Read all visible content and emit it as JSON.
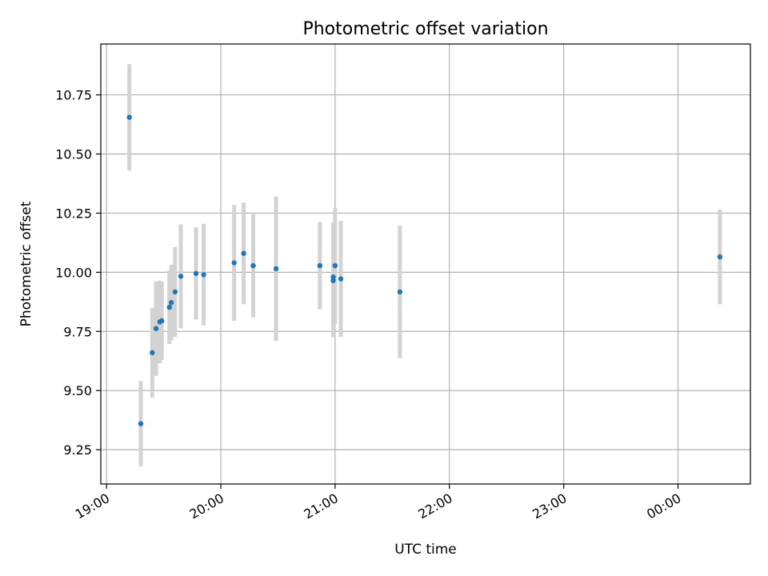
{
  "chart_data": {
    "type": "scatter",
    "title": "Photometric offset variation",
    "xlabel": "UTC time",
    "ylabel": "Photometric offset",
    "grid": true,
    "x_axis_type": "time",
    "xlim": [
      "18:57",
      "00:38"
    ],
    "ylim": [
      9.105,
      10.965
    ],
    "x_ticks": [
      {
        "time": "19:00",
        "label": "19:00"
      },
      {
        "time": "20:00",
        "label": "20:00"
      },
      {
        "time": "21:00",
        "label": "21:00"
      },
      {
        "time": "22:00",
        "label": "22:00"
      },
      {
        "time": "23:00",
        "label": "23:00"
      },
      {
        "time": "00:00",
        "label": "00:00"
      }
    ],
    "y_ticks": [
      9.25,
      9.5,
      9.75,
      10.0,
      10.25,
      10.5,
      10.75
    ],
    "y_tick_labels": [
      "9.25",
      "9.50",
      "9.75",
      "10.00",
      "10.25",
      "10.50",
      "10.75"
    ],
    "series": [
      {
        "marker_color": "#1f77b4",
        "errorbar_color": "#d3d3d3",
        "points": [
          {
            "time": "19:12",
            "y": 10.655,
            "yerr": 0.225
          },
          {
            "time": "19:18",
            "y": 9.36,
            "yerr": 0.18
          },
          {
            "time": "19:24",
            "y": 9.66,
            "yerr": 0.19
          },
          {
            "time": "19:26",
            "y": 9.762,
            "yerr": 0.2
          },
          {
            "time": "19:28",
            "y": 9.79,
            "yerr": 0.175
          },
          {
            "time": "19:29",
            "y": 9.795,
            "yerr": 0.165
          },
          {
            "time": "19:33",
            "y": 9.852,
            "yerr": 0.155
          },
          {
            "time": "19:34",
            "y": 9.872,
            "yerr": 0.16
          },
          {
            "time": "19:36",
            "y": 9.917,
            "yerr": 0.19
          },
          {
            "time": "19:39",
            "y": 9.983,
            "yerr": 0.22
          },
          {
            "time": "19:47",
            "y": 9.995,
            "yerr": 0.195
          },
          {
            "time": "19:51",
            "y": 9.99,
            "yerr": 0.215
          },
          {
            "time": "20:07",
            "y": 10.04,
            "yerr": 0.245
          },
          {
            "time": "20:12",
            "y": 10.08,
            "yerr": 0.215
          },
          {
            "time": "20:17",
            "y": 10.028,
            "yerr": 0.218
          },
          {
            "time": "20:29",
            "y": 10.015,
            "yerr": 0.305
          },
          {
            "time": "20:52",
            "y": 10.028,
            "yerr": 0.185
          },
          {
            "time": "20:59",
            "y": 9.98,
            "yerr": 0.23
          },
          {
            "time": "20:59",
            "y": 9.965,
            "yerr": 0.24
          },
          {
            "time": "21:00",
            "y": 10.028,
            "yerr": 0.245
          },
          {
            "time": "21:03",
            "y": 9.972,
            "yerr": 0.245
          },
          {
            "time": "21:34",
            "y": 9.917,
            "yerr": 0.28
          },
          {
            "time": "00:22",
            "y": 10.065,
            "yerr": 0.2
          }
        ]
      }
    ]
  }
}
